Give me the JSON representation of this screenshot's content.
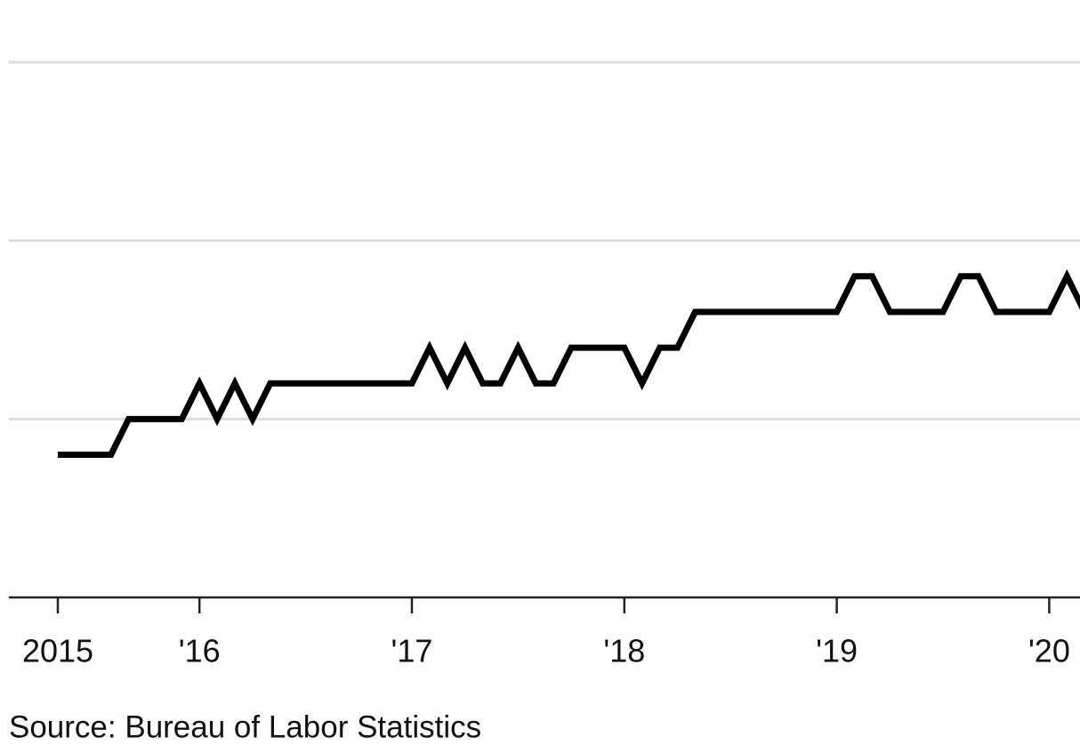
{
  "chart_data": {
    "type": "line",
    "categories": [
      "2015",
      null,
      null,
      null,
      null,
      null,
      null,
      null,
      "'16",
      null,
      null,
      null,
      null,
      null,
      null,
      null,
      null,
      null,
      null,
      null,
      "'17",
      null,
      null,
      null,
      null,
      null,
      null,
      null,
      null,
      null,
      null,
      null,
      "'18",
      null,
      null,
      null,
      null,
      null,
      null,
      null,
      null,
      null,
      null,
      null,
      "'19",
      null,
      null,
      null,
      null,
      null,
      null,
      null,
      null,
      null,
      null,
      null,
      "'20",
      null,
      null
    ],
    "values": [
      0.8,
      0.8,
      0.8,
      0.8,
      1.0,
      1.0,
      1.0,
      1.0,
      1.2,
      1.0,
      1.2,
      1.0,
      1.2,
      1.2,
      1.2,
      1.2,
      1.2,
      1.2,
      1.2,
      1.2,
      1.2,
      1.4,
      1.2,
      1.4,
      1.2,
      1.2,
      1.4,
      1.2,
      1.2,
      1.4,
      1.4,
      1.4,
      1.4,
      1.2,
      1.4,
      1.4,
      1.6,
      1.6,
      1.6,
      1.6,
      1.6,
      1.6,
      1.6,
      1.6,
      1.6,
      1.8,
      1.8,
      1.6,
      1.6,
      1.6,
      1.6,
      1.8,
      1.8,
      1.6,
      1.6,
      1.6,
      1.6,
      1.8,
      1.6
    ],
    "color": "#000000",
    "ylim": [
      0,
      3
    ],
    "yticks": [
      1,
      2,
      3
    ],
    "grid": true,
    "source": "Source: Bureau of Labor Statistics"
  }
}
